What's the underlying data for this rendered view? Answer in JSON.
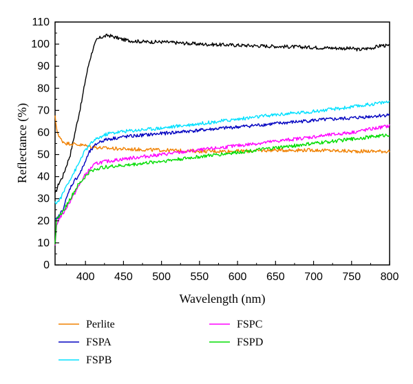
{
  "chart_data": {
    "type": "line",
    "xlabel": "Wavelength (nm)",
    "ylabel": "Reflectance (%)",
    "xlim": [
      360,
      800
    ],
    "ylim": [
      0,
      110
    ],
    "xticks": [
      400,
      450,
      500,
      550,
      600,
      650,
      700,
      750,
      800
    ],
    "yticks": [
      0,
      10,
      20,
      30,
      40,
      50,
      60,
      70,
      80,
      90,
      100,
      110
    ],
    "grid": false,
    "legend_position": "bottom",
    "series": [
      {
        "name": "",
        "color": "#000000",
        "x": [
          360,
          365,
          370,
          375,
          380,
          385,
          390,
          395,
          400,
          405,
          410,
          415,
          420,
          425,
          430,
          435,
          440,
          450,
          460,
          480,
          500,
          550,
          600,
          650,
          700,
          750,
          760,
          780,
          790,
          800
        ],
        "y": [
          32,
          37,
          40,
          45,
          50,
          58,
          66,
          74,
          84,
          92,
          98,
          102,
          103,
          103.5,
          104,
          103.5,
          103,
          102,
          101.5,
          101,
          101,
          100,
          99.5,
          99,
          98.5,
          98,
          97.5,
          98.5,
          99.5,
          99
        ]
      },
      {
        "name": "Perlite",
        "color": "#f08000",
        "x": [
          360,
          362,
          365,
          370,
          375,
          380,
          390,
          400,
          420,
          450,
          500,
          550,
          600,
          650,
          700,
          750,
          800
        ],
        "y": [
          67,
          62,
          58,
          56,
          55,
          55,
          54.5,
          54,
          53,
          52.5,
          52,
          51.5,
          51.5,
          52,
          52,
          51.5,
          51.5
        ]
      },
      {
        "name": "FSPA",
        "color": "#0000c0",
        "x": [
          360,
          365,
          370,
          375,
          380,
          385,
          390,
          395,
          400,
          405,
          410,
          415,
          420,
          430,
          450,
          500,
          550,
          600,
          650,
          700,
          750,
          800
        ],
        "y": [
          20,
          22,
          25,
          30,
          35,
          38,
          40,
          43,
          47,
          51,
          53,
          55,
          56,
          57,
          58,
          59.5,
          61,
          62.5,
          64,
          65.5,
          66.5,
          68
        ]
      },
      {
        "name": "FSPB",
        "color": "#00e0ff",
        "x": [
          360,
          365,
          370,
          375,
          380,
          385,
          390,
          395,
          400,
          405,
          410,
          415,
          420,
          430,
          450,
          500,
          550,
          600,
          650,
          700,
          750,
          800
        ],
        "y": [
          28,
          29,
          32,
          36,
          39,
          42,
          45,
          49,
          52,
          54,
          56,
          57,
          58,
          59.5,
          60.5,
          62,
          64,
          66,
          68,
          69.5,
          71.5,
          74
        ]
      },
      {
        "name": "FSPC",
        "color": "#ff00ff",
        "x": [
          360,
          362,
          365,
          370,
          375,
          380,
          385,
          390,
          395,
          400,
          405,
          410,
          415,
          420,
          430,
          450,
          500,
          550,
          600,
          650,
          700,
          750,
          800
        ],
        "y": [
          8,
          18,
          21,
          23,
          26,
          29,
          32,
          35,
          38,
          41,
          43,
          45,
          46,
          46.5,
          47,
          48,
          50,
          52,
          54,
          56,
          58,
          60,
          63
        ]
      },
      {
        "name": "FSPD",
        "color": "#00dd00",
        "x": [
          360,
          362,
          365,
          370,
          375,
          380,
          385,
          390,
          395,
          400,
          405,
          410,
          415,
          420,
          430,
          450,
          500,
          550,
          600,
          650,
          700,
          750,
          800
        ],
        "y": [
          10,
          20,
          22,
          24,
          27,
          30,
          33,
          36,
          38,
          40,
          42,
          43,
          43.5,
          44,
          44.5,
          45,
          47,
          49,
          51,
          53,
          55,
          57,
          59
        ]
      }
    ]
  }
}
